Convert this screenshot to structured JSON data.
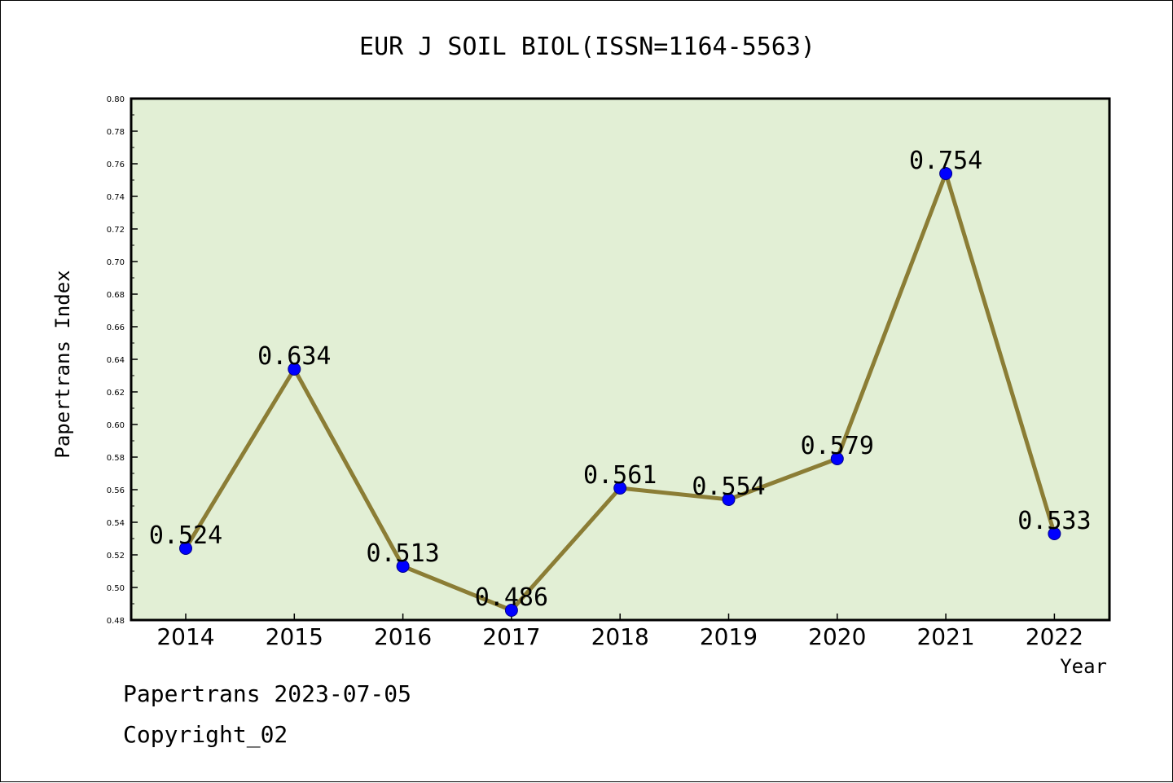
{
  "chart_data": {
    "type": "line",
    "title": "EUR J SOIL BIOL(ISSN=1164-5563)",
    "xlabel": "Year",
    "ylabel": "Papertrans Index",
    "categories": [
      "2014",
      "2015",
      "2016",
      "2017",
      "2018",
      "2019",
      "2020",
      "2021",
      "2022"
    ],
    "values": [
      0.524,
      0.634,
      0.513,
      0.486,
      0.561,
      0.554,
      0.579,
      0.754,
      0.533
    ],
    "data_labels": [
      "0.524",
      "0.634",
      "0.513",
      "0.486",
      "0.561",
      "0.554",
      "0.579",
      "0.754",
      "0.533"
    ],
    "ylim": [
      0.48,
      0.8
    ],
    "yticks": [
      "0.48",
      "0.50",
      "0.52",
      "0.54",
      "0.56",
      "0.58",
      "0.60",
      "0.62",
      "0.64",
      "0.66",
      "0.68",
      "0.70",
      "0.72",
      "0.74",
      "0.76",
      "0.78",
      "0.80"
    ],
    "grid": false,
    "line_color": "#8b7d35",
    "marker_color": "#0000ff",
    "plot_background": "#e2efd5"
  },
  "footer": {
    "date_line": "Papertrans 2023-07-05",
    "copyright_line": "Copyright_02"
  }
}
